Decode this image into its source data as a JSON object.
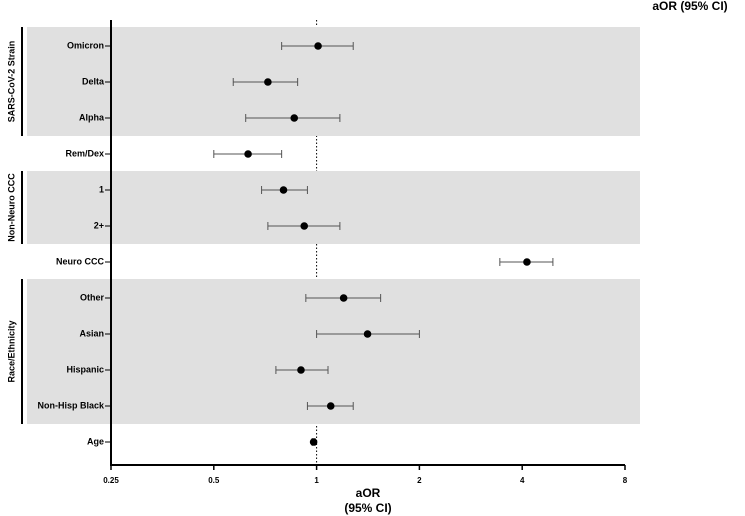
{
  "chart_data": {
    "type": "forest",
    "column_header": "aOR  (95% CI)",
    "xlabel": "aOR",
    "xlabel_sub": "(95% CI)",
    "log_scale": true,
    "xlim": [
      0.25,
      8
    ],
    "xticks": [
      0.25,
      0.5,
      1,
      2,
      4,
      8
    ],
    "reference_line": 1,
    "color": "#000000",
    "band_color": "#e0e0e0",
    "groups": [
      {
        "label": "SARS-CoV-2 Strain",
        "categories": [
          "Omicron",
          "Delta",
          "Alpha"
        ],
        "values": [
          1.01,
          0.72,
          0.86
        ],
        "ci_low": [
          0.79,
          0.57,
          0.62
        ],
        "ci_high": [
          1.28,
          0.88,
          1.17
        ]
      },
      {
        "label": null,
        "categories": [
          "Rem/Dex"
        ],
        "values": [
          0.63
        ],
        "ci_low": [
          0.5
        ],
        "ci_high": [
          0.79
        ]
      },
      {
        "label": "Non-Neuro CCC",
        "categories": [
          "1",
          "2+"
        ],
        "values": [
          0.8,
          0.92
        ],
        "ci_low": [
          0.69,
          0.72
        ],
        "ci_high": [
          0.94,
          1.17
        ]
      },
      {
        "label": null,
        "categories": [
          "Neuro CCC"
        ],
        "values": [
          4.13
        ],
        "ci_low": [
          3.44
        ],
        "ci_high": [
          4.92
        ]
      },
      {
        "label": "Race/Ethnicity",
        "categories": [
          "Other",
          "Asian",
          "Hispanic",
          "Non-Hisp Black"
        ],
        "values": [
          1.2,
          1.41,
          0.9,
          1.1
        ],
        "ci_low": [
          0.93,
          1.0,
          0.76,
          0.94
        ],
        "ci_high": [
          1.54,
          2.0,
          1.08,
          1.28
        ]
      },
      {
        "label": null,
        "categories": [
          "Age"
        ],
        "values": [
          0.98
        ],
        "ci_low": [
          0.97
        ],
        "ci_high": [
          0.99
        ]
      }
    ]
  }
}
